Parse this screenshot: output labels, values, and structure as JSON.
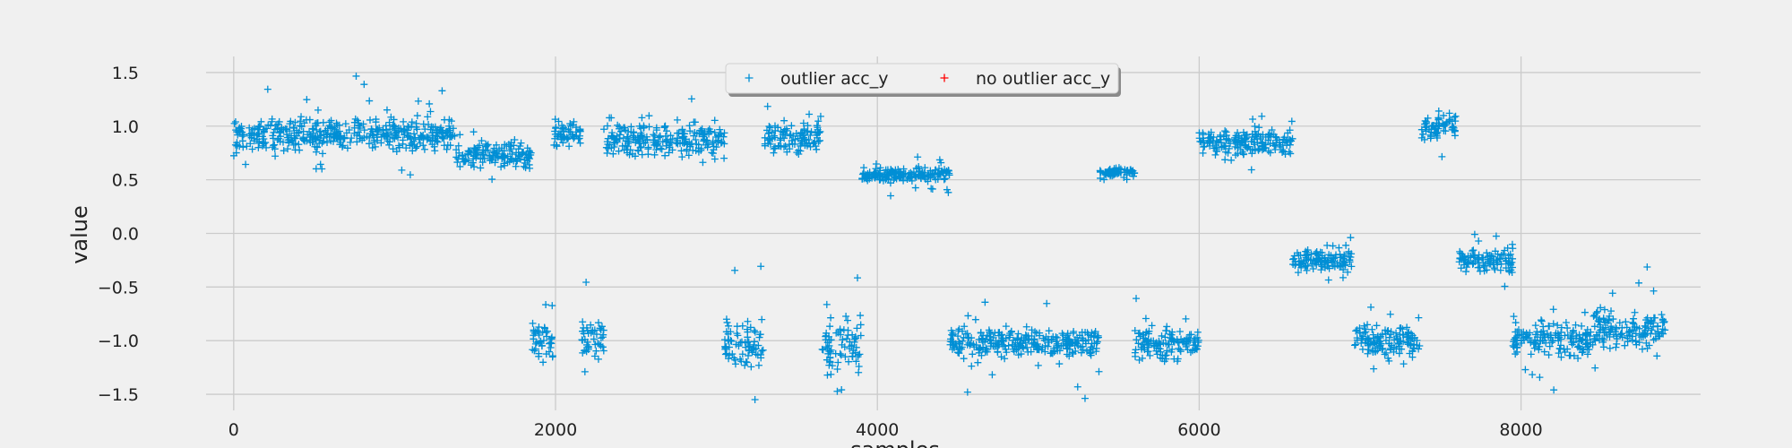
{
  "chart_data": {
    "type": "scatter",
    "title": "",
    "xlabel": "samples",
    "ylabel": "value",
    "xlim": [
      -450,
      9450
    ],
    "ylim": [
      -1.65,
      1.8
    ],
    "xticks": [
      0,
      2000,
      4000,
      6000,
      8000
    ],
    "yticks": [
      -1.5,
      -1.0,
      -0.5,
      0.0,
      0.5,
      1.0,
      1.5
    ],
    "ytick_labels": [
      "−1.5",
      "−1.0",
      "−0.5",
      "0.0",
      "0.5",
      "1.0",
      "1.5"
    ],
    "grid": true,
    "legend_position": "top-center",
    "marker": "+",
    "colors": {
      "outlier": "#008fd5",
      "no_outlier": "#ff0000",
      "background": "#f0f0f0",
      "grid": "#cbcbcb"
    },
    "series": [
      {
        "name": "outlier acc_y",
        "color": "#008fd5",
        "segments": [
          {
            "x_range": [
              0,
              1380
            ],
            "y_center": 0.92,
            "y_spread": 0.22,
            "note": "dense band"
          },
          {
            "x_range": [
              1380,
              1850
            ],
            "y_center": 0.72,
            "y_spread": 0.2
          },
          {
            "x_range": [
              1850,
              1990
            ],
            "y_center": -1.0,
            "y_spread": 0.28
          },
          {
            "x_range": [
              1990,
              2160
            ],
            "y_center": 0.92,
            "y_spread": 0.18
          },
          {
            "x_range": [
              2160,
              2300
            ],
            "y_center": -1.0,
            "y_spread": 0.28
          },
          {
            "x_range": [
              2300,
              3050
            ],
            "y_center": 0.88,
            "y_spread": 0.22
          },
          {
            "x_range": [
              3050,
              3300
            ],
            "y_center": -1.05,
            "y_spread": 0.35
          },
          {
            "x_range": [
              3300,
              3650
            ],
            "y_center": 0.9,
            "y_spread": 0.2
          },
          {
            "x_range": [
              3650,
              3900
            ],
            "y_center": -1.05,
            "y_spread": 0.35
          },
          {
            "x_range": [
              3900,
              4450
            ],
            "y_center": 0.55,
            "y_spread": 0.1
          },
          {
            "x_range": [
              4450,
              5380
            ],
            "y_center": -1.02,
            "y_spread": 0.2
          },
          {
            "x_range": [
              5380,
              5600
            ],
            "y_center": 0.57,
            "y_spread": 0.06
          },
          {
            "x_range": [
              5600,
              6000
            ],
            "y_center": -1.02,
            "y_spread": 0.2
          },
          {
            "x_range": [
              6000,
              6580
            ],
            "y_center": 0.85,
            "y_spread": 0.18
          },
          {
            "x_range": [
              6580,
              6960
            ],
            "y_center": -0.25,
            "y_spread": 0.15
          },
          {
            "x_range": [
              6960,
              7380
            ],
            "y_center": -1.0,
            "y_spread": 0.22
          },
          {
            "x_range": [
              7380,
              7600
            ],
            "y_center": 1.0,
            "y_spread": 0.2
          },
          {
            "x_range": [
              7600,
              7950
            ],
            "y_center": -0.25,
            "y_spread": 0.15
          },
          {
            "x_range": [
              7950,
              8450
            ],
            "y_center": -1.0,
            "y_spread": 0.22
          },
          {
            "x_range": [
              8450,
              8900
            ],
            "y_center": -0.9,
            "y_spread": 0.25
          }
        ]
      },
      {
        "name": "no outlier acc_y",
        "color": "#ff0000",
        "segments": []
      }
    ]
  }
}
